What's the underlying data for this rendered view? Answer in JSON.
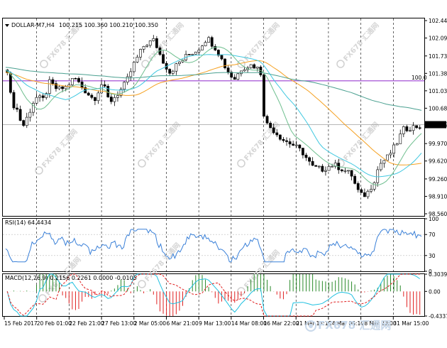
{
  "main_panel": {
    "symbol_label": "DOLLAR-M7,H4",
    "ohlc_label": "100.215 100.360 100.210 100.350",
    "current_price_label": "100.350",
    "level_label": "100.0",
    "y_ticks": [
      "102.440",
      "102.090",
      "101.730",
      "101.380",
      "101.030",
      "100.680",
      "100.350",
      "99.970",
      "99.620",
      "99.260",
      "98.910",
      "98.560"
    ],
    "y_values": [
      102.44,
      102.09,
      101.73,
      101.38,
      101.03,
      100.68,
      100.35,
      99.97,
      99.62,
      99.26,
      98.91,
      98.56
    ],
    "ylim": [
      98.56,
      102.44
    ],
    "level_value": 101.23,
    "colors": {
      "level": "#9a3fd0",
      "bull": "#000000",
      "bear": "#000000",
      "ma_orange": "#f5a020",
      "ma_teal": "#4aa090",
      "ma_cyan": "#40c8e0",
      "ma_green": "#6fbf8f",
      "current": "#9e9e9e"
    }
  },
  "rsi_panel": {
    "label": "RSI(14) 64.4434",
    "ticks": [
      "100",
      "70",
      "30",
      "0"
    ],
    "tick_values": [
      100,
      70,
      30,
      0
    ],
    "color": "#3a80d8"
  },
  "macd_panel": {
    "label": "MACD(12,26,9) 0.2156 0.2261 0.0000 -0.0105",
    "ticks": [
      "0.3039",
      "0.00",
      "-0.4337"
    ],
    "tick_values": [
      0.3039,
      0.0,
      -0.4337
    ],
    "colors": {
      "up": "#2a8a2a",
      "down": "#e02020",
      "signal": "#e02020",
      "macd": "#20c0e0"
    }
  },
  "x_axis_labels": [
    "15 Feb 2017",
    "20 Feb 01:00",
    "22 Feb 21:00",
    "27 Feb 13:00",
    "2 Mar 05:00",
    "6 Mar 21:00",
    "9 Mar 13:00",
    "14 Mar 08:00",
    "16 Mar 22:00",
    "21 Mar 14:10",
    "24 Mar 06:10",
    "28 Mar 23:00",
    "31 Mar 15:00"
  ],
  "watermark_text": "FX678 汇通网",
  "footer_watermark": "FX678 汇通网",
  "icons": {
    "dropdown": "triangle-down-icon",
    "watermark": "fx678-logo-icon"
  }
}
